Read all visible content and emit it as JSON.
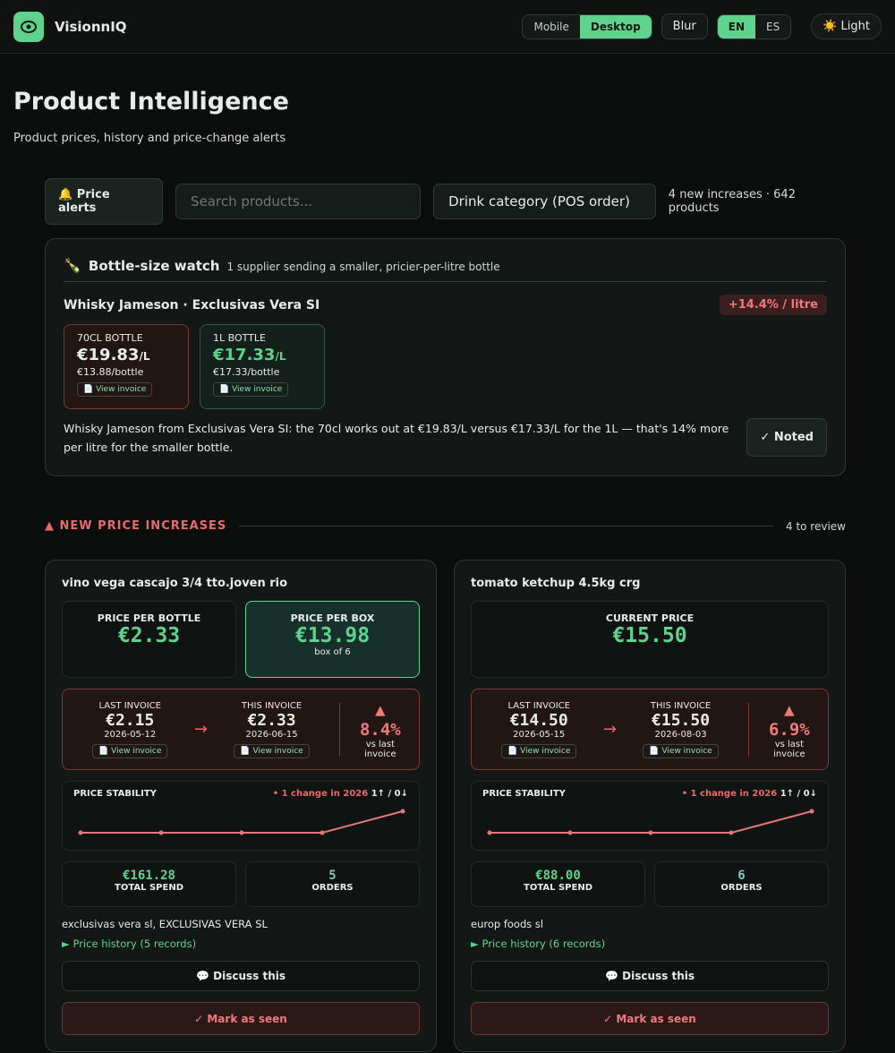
{
  "header": {
    "brand": "VisionnIQ",
    "mobile": "Mobile",
    "desktop": "Desktop",
    "blur": "Blur",
    "en": "EN",
    "es": "ES",
    "theme": "☀️ Light"
  },
  "page": {
    "title": "Product Intelligence",
    "subtitle": "Product prices, history and price-change alerts"
  },
  "toolbar": {
    "alerts": "🔔 Price alerts",
    "search_placeholder": "Search products...",
    "category": "Drink category (POS order)",
    "summary": "4 new increases · 642 products"
  },
  "bottle_watch": {
    "title": "Bottle-size watch",
    "subtitle": "1 supplier sending a smaller, pricier-per-litre bottle",
    "product": "Whisky Jameson · Exclusivas Vera SI",
    "badge": "+14.4% / litre",
    "bottles": [
      {
        "label": "70CL BOTTLE",
        "price": "€19.83",
        "unit": "/L",
        "per_bottle": "€13.88/bottle",
        "link": "📄 View invoice"
      },
      {
        "label": "1L BOTTLE",
        "price": "€17.33",
        "unit": "/L",
        "per_bottle": "€17.33/bottle",
        "link": "📄 View invoice"
      }
    ],
    "message": "Whisky Jameson from Exclusivas Vera SI: the 70cl works out at €19.83/L versus €17.33/L for the 1L — that's 14% more per litre for the smaller bottle.",
    "noted": "✓ Noted"
  },
  "increases": {
    "title": "▲ NEW PRICE INCREASES",
    "count": "4 to review",
    "cards": [
      {
        "name": "vino vega cascajo 3/4 tto.joven rio",
        "prices": [
          {
            "label": "PRICE PER BOTTLE",
            "value": "€2.33"
          },
          {
            "label": "PRICE PER BOX",
            "value": "€13.98",
            "note": "box of 6"
          }
        ],
        "last": {
          "label": "LAST INVOICE",
          "value": "€2.15",
          "date": "2026-05-12",
          "link": "📄 View invoice"
        },
        "arrow": "→",
        "this": {
          "label": "THIS INVOICE",
          "value": "€2.33",
          "date": "2026-06-15",
          "link": "📄 View invoice"
        },
        "change": "▲ 8.4%",
        "change_note": "vs last invoice",
        "stability": {
          "title": "PRICE STABILITY",
          "note": "• 1 change in 2026",
          "counts": "1↑ / 0↓",
          "values": [
            2.15,
            2.15,
            2.15,
            2.15,
            2.33
          ]
        },
        "stats": [
          {
            "value": "€161.28",
            "label": "TOTAL SPEND"
          },
          {
            "value": "5",
            "label": "ORDERS"
          }
        ],
        "suppliers": "exclusivas vera sl, EXCLUSIVAS VERA SL",
        "history": "► Price history (5 records)",
        "discuss": "💬 Discuss this",
        "seen": "✓ Mark as seen"
      },
      {
        "name": "tomato ketchup 4.5kg crg",
        "prices": [
          {
            "label": "CURRENT PRICE",
            "value": "€15.50"
          }
        ],
        "last": {
          "label": "LAST INVOICE",
          "value": "€14.50",
          "date": "2026-05-15",
          "link": "📄 View invoice"
        },
        "arrow": "→",
        "this": {
          "label": "THIS INVOICE",
          "value": "€15.50",
          "date": "2026-08-03",
          "link": "📄 View invoice"
        },
        "change": "▲ 6.9%",
        "change_note": "vs last invoice",
        "stability": {
          "title": "PRICE STABILITY",
          "note": "• 1 change in 2026",
          "counts": "1↑ / 0↓",
          "values": [
            14.5,
            14.5,
            14.5,
            14.5,
            15.5
          ]
        },
        "stats": [
          {
            "value": "€88.00",
            "label": "TOTAL SPEND"
          },
          {
            "value": "6",
            "label": "ORDERS"
          }
        ],
        "suppliers": "europ foods sl",
        "history": "► Price history (6 records)",
        "discuss": "💬 Discuss this",
        "seen": "✓ Mark as seen"
      }
    ]
  }
}
